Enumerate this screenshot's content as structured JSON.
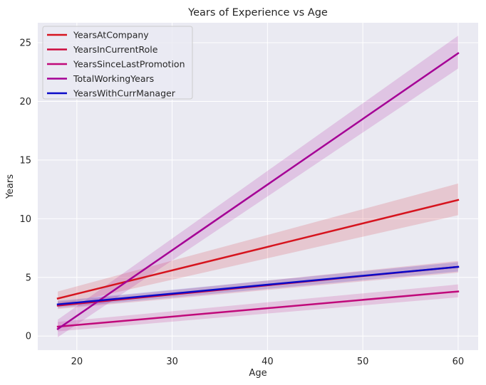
{
  "chart_data": {
    "type": "line",
    "title": "Years of Experience vs Age",
    "xlabel": "Age",
    "ylabel": "Years",
    "xlim": [
      15.9,
      62.1
    ],
    "ylim": [
      -1.2,
      26.7
    ],
    "xticks": [
      20,
      30,
      40,
      50,
      60
    ],
    "yticks": [
      0,
      5,
      10,
      15,
      20,
      25
    ],
    "grid": true,
    "legend_position": "top-left",
    "series": [
      {
        "name": "YearsAtCompany",
        "color": "#d6141e",
        "x": [
          18,
          60
        ],
        "y": [
          3.2,
          11.6
        ],
        "ci_low": [
          2.6,
          10.3
        ],
        "ci_high": [
          3.8,
          13.0
        ]
      },
      {
        "name": "YearsInCurrentRole",
        "color": "#cc0a3c",
        "x": [
          18,
          60
        ],
        "y": [
          2.6,
          5.9
        ],
        "ci_low": [
          2.3,
          5.4
        ],
        "ci_high": [
          2.9,
          6.4
        ]
      },
      {
        "name": "YearsSinceLastPromotion",
        "color": "#c0097a",
        "x": [
          18,
          60
        ],
        "y": [
          0.8,
          3.8
        ],
        "ci_low": [
          0.4,
          3.3
        ],
        "ci_high": [
          1.2,
          4.4
        ]
      },
      {
        "name": "TotalWorkingYears",
        "color": "#a50095",
        "x": [
          18,
          60
        ],
        "y": [
          0.6,
          24.1
        ],
        "ci_low": [
          -0.1,
          22.8
        ],
        "ci_high": [
          1.4,
          25.6
        ]
      },
      {
        "name": "YearsWithCurrManager",
        "color": "#0a0ac8",
        "x": [
          18,
          60
        ],
        "y": [
          2.7,
          5.9
        ],
        "ci_low": [
          2.4,
          5.5
        ],
        "ci_high": [
          3.0,
          6.3
        ]
      }
    ]
  }
}
